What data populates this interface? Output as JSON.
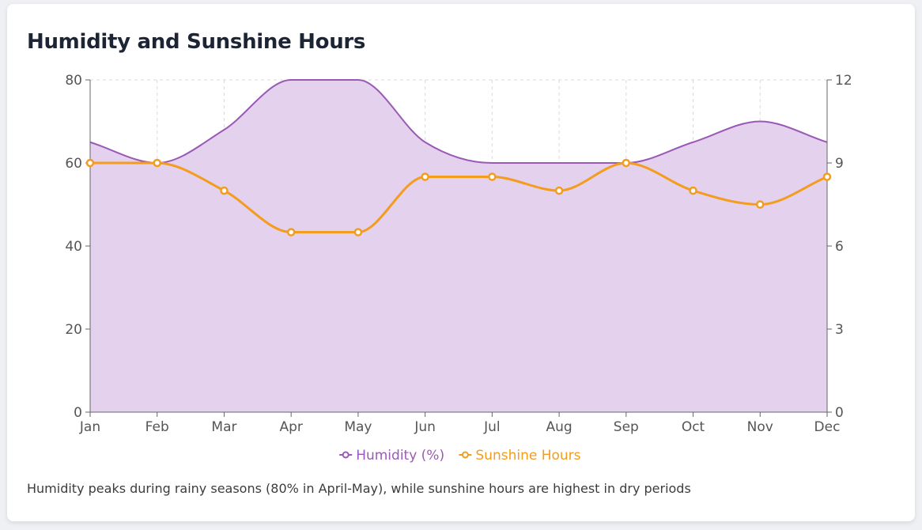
{
  "chart_title": "Humidity and Sunshine Hours",
  "caption": "Humidity peaks during rainy seasons (80% in April-May), while sunshine hours are highest in dry periods",
  "chart_data": {
    "type": "line",
    "categories": [
      "Jan",
      "Feb",
      "Mar",
      "Apr",
      "May",
      "Jun",
      "Jul",
      "Aug",
      "Sep",
      "Oct",
      "Nov",
      "Dec"
    ],
    "series": [
      {
        "name": "Humidity (%)",
        "axis": "left",
        "style": "area",
        "color": "#9b59b6",
        "fill": "#e2cfec",
        "values": [
          65,
          60,
          68,
          80,
          80,
          65,
          60,
          60,
          60,
          65,
          70,
          65
        ]
      },
      {
        "name": "Sunshine Hours",
        "axis": "right",
        "style": "line-with-markers",
        "color": "#f39c1e",
        "values": [
          9,
          9,
          8,
          6.5,
          6.5,
          8.5,
          8.5,
          8,
          9,
          8,
          7.5,
          8.5
        ]
      }
    ],
    "y_left": {
      "min": 0,
      "max": 80,
      "ticks": [
        "0",
        "20",
        "40",
        "60",
        "80"
      ]
    },
    "y_right": {
      "min": 0,
      "max": 12,
      "ticks": [
        "0",
        "3",
        "6",
        "9",
        "12"
      ]
    },
    "grid": true,
    "legend": "bottom-center"
  }
}
